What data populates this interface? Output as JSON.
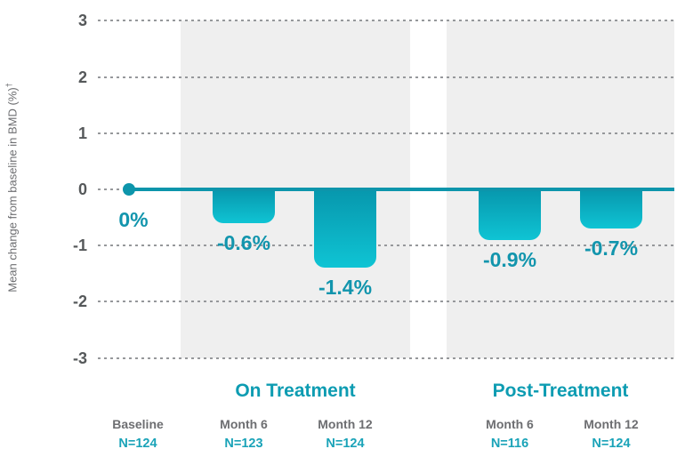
{
  "chart_data": {
    "type": "bar",
    "title": "",
    "ylabel": "Mean change from baseline in BMD (%)",
    "ylabel_dagger": "†",
    "xlabel": "",
    "ylim": [
      -3,
      3
    ],
    "yticks": [
      3,
      2,
      1,
      0,
      -1,
      -2,
      -3
    ],
    "grid": "dotted horizontal",
    "baseline": {
      "label": "Baseline",
      "n": "N=124",
      "value": 0,
      "value_label": "0%"
    },
    "groups": [
      {
        "title": "On Treatment",
        "bars": [
          {
            "label": "Month 6",
            "n": "N=123",
            "value": -0.6,
            "value_label": "-0.6%"
          },
          {
            "label": "Month 12",
            "n": "N=124",
            "value": -1.4,
            "value_label": "-1.4%"
          }
        ]
      },
      {
        "title": "Post-Treatment",
        "bars": [
          {
            "label": "Month 6",
            "n": "N=116",
            "value": -0.9,
            "value_label": "-0.9%"
          },
          {
            "label": "Month 12",
            "n": "N=124",
            "value": -0.7,
            "value_label": "-0.7%"
          }
        ]
      }
    ],
    "colors": {
      "zero_line": "#0d95ab",
      "bar_gradient_top": "#0797ad",
      "bar_gradient_bottom": "#0fc4d4",
      "value_label": "#1295ad",
      "group_title": "#0d9cb2",
      "n_label": "#1aa3b8",
      "tick_label": "#55585a",
      "category_label": "#6d6e71",
      "axis_label": "#6d6e71",
      "panel_background": "#efefef",
      "gridline": "#96989b",
      "page_background": "#ffffff"
    }
  }
}
